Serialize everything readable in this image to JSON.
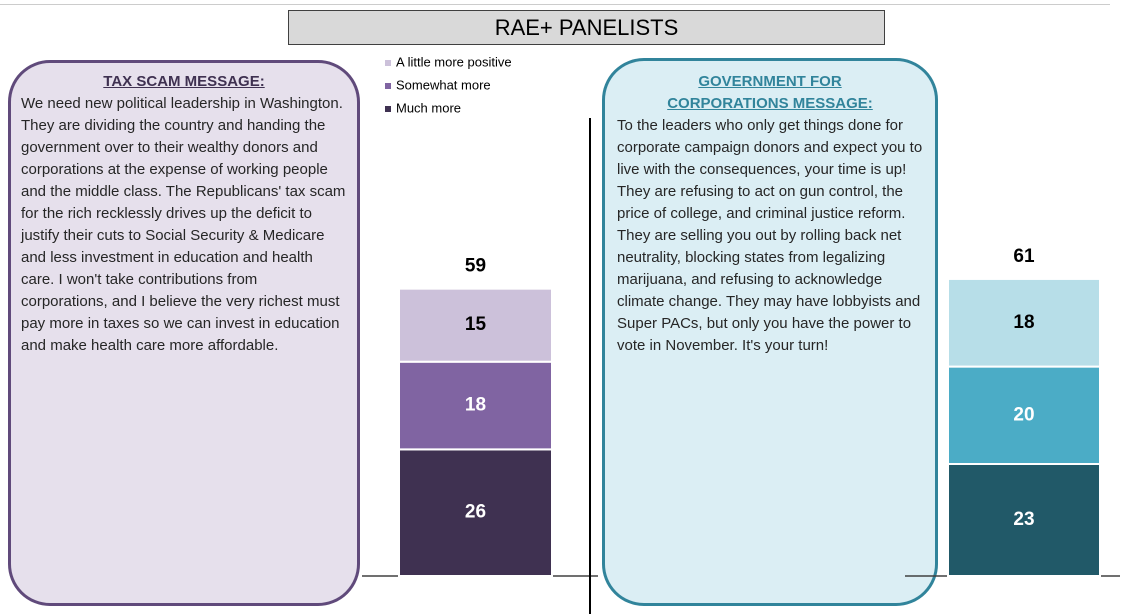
{
  "title": "RAE+ PANELISTS",
  "chart_data": [
    {
      "type": "stacked_bar",
      "message_title": "TAX SCAM MESSAGE:",
      "message_text": "We need new political leadership in Washington. They are dividing the country and handing the government over to their wealthy donors and corporations at the expense of working people and the middle class. The Republicans' tax scam for the rich recklessly drives up the deficit to justify their cuts to Social Security & Medicare and less investment in education and health care. I won't take contributions from corporations, and I believe the very richest must pay more in taxes so we can invest in education and make health care more affordable.",
      "total": 59,
      "ylim": [
        0,
        100
      ],
      "series": [
        {
          "name": "A little more positive",
          "color": "#ccc1da",
          "values": [
            15
          ]
        },
        {
          "name": "Somewhat more",
          "color": "#8064a2",
          "values": [
            18
          ]
        },
        {
          "name": "Much more",
          "color": "#3f3151",
          "values": [
            26
          ]
        }
      ]
    },
    {
      "type": "stacked_bar",
      "message_title": "GOVERNMENT FOR CORPORATIONS MESSAGE:",
      "message_text": "To the leaders who only get things done for corporate campaign donors and expect you to live with the consequences, your time is up! They are refusing to act on gun control, the price of college, and criminal justice reform. They are selling you out by rolling back net neutrality, blocking states from legalizing marijuana, and refusing to acknowledge climate change. They may have lobbyists and Super PACs, but only you have the power to vote in November. It's your turn!",
      "total": 61,
      "ylim": [
        0,
        100
      ],
      "series": [
        {
          "color": "#b7dee8",
          "values": [
            18
          ]
        },
        {
          "color": "#4bacc6",
          "values": [
            20
          ]
        },
        {
          "color": "#215968",
          "values": [
            23
          ]
        }
      ]
    }
  ]
}
